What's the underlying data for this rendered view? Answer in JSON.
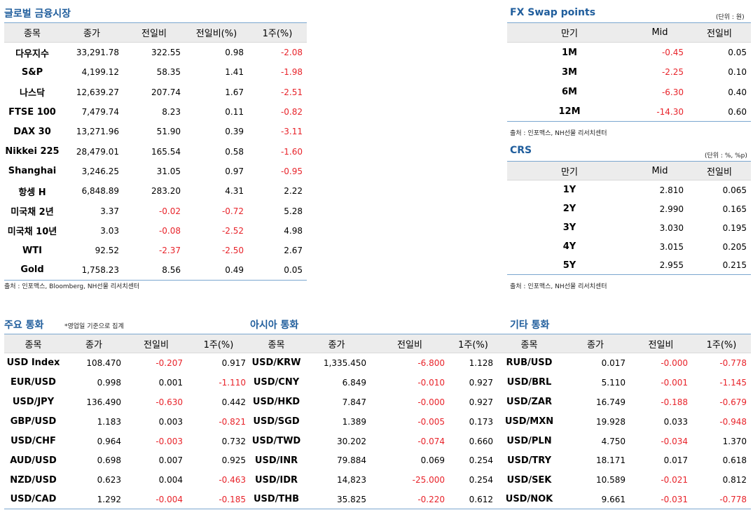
{
  "global": {
    "title": "글로벌 금융시장",
    "columns": [
      "종목",
      "종가",
      "전일비",
      "전일비(%)",
      "1주(%)"
    ],
    "rows": [
      {
        "name": "다우지수",
        "close": "33,291.78",
        "chg": "322.55",
        "chg_pct": "0.98",
        "week": "-2.08"
      },
      {
        "name": "S&P",
        "close": "4,199.12",
        "chg": "58.35",
        "chg_pct": "1.41",
        "week": "-1.98"
      },
      {
        "name": "나스닥",
        "close": "12,639.27",
        "chg": "207.74",
        "chg_pct": "1.67",
        "week": "-2.51"
      },
      {
        "name": "FTSE 100",
        "close": "7,479.74",
        "chg": "8.23",
        "chg_pct": "0.11",
        "week": "-0.82"
      },
      {
        "name": "DAX 30",
        "close": "13,271.96",
        "chg": "51.90",
        "chg_pct": "0.39",
        "week": "-3.11"
      },
      {
        "name": "Nikkei 225",
        "close": "28,479.01",
        "chg": "165.54",
        "chg_pct": "0.58",
        "week": "-1.60"
      },
      {
        "name": "Shanghai",
        "close": "3,246.25",
        "chg": "31.05",
        "chg_pct": "0.97",
        "week": "-0.95"
      },
      {
        "name": "항셍 H",
        "close": "6,848.89",
        "chg": "283.20",
        "chg_pct": "4.31",
        "week": "2.22"
      },
      {
        "name": "미국채 2년",
        "close": "3.37",
        "chg": "-0.02",
        "chg_pct": "-0.72",
        "week": "5.28"
      },
      {
        "name": "미국채 10년",
        "close": "3.03",
        "chg": "-0.08",
        "chg_pct": "-2.52",
        "week": "4.98"
      },
      {
        "name": "WTI",
        "close": "92.52",
        "chg": "-2.37",
        "chg_pct": "-2.50",
        "week": "2.67"
      },
      {
        "name": "Gold",
        "close": "1,758.23",
        "chg": "8.56",
        "chg_pct": "0.49",
        "week": "0.05"
      }
    ],
    "source": "출처 : 인포맥스, Bloomberg, NH선물 리서치센터"
  },
  "fx_swap": {
    "title": "FX Swap points",
    "unit": "(단위 : 원)",
    "columns": [
      "만기",
      "Mid",
      "전일비"
    ],
    "rows": [
      {
        "term": "1M",
        "mid": "-0.45",
        "chg": "0.05"
      },
      {
        "term": "3M",
        "mid": "-2.25",
        "chg": "0.10"
      },
      {
        "term": "6M",
        "mid": "-6.30",
        "chg": "0.40"
      },
      {
        "term": "12M",
        "mid": "-14.30",
        "chg": "0.60"
      }
    ],
    "source": "출처 : 인포맥스, NH선물 리서치센터"
  },
  "crs": {
    "title": "CRS",
    "unit": "(단위 : %, %p)",
    "columns": [
      "만기",
      "Mid",
      "전일비"
    ],
    "rows": [
      {
        "term": "1Y",
        "mid": "2.810",
        "chg": "0.065"
      },
      {
        "term": "2Y",
        "mid": "2.990",
        "chg": "0.165"
      },
      {
        "term": "3Y",
        "mid": "3.030",
        "chg": "0.195"
      },
      {
        "term": "4Y",
        "mid": "3.015",
        "chg": "0.205"
      },
      {
        "term": "5Y",
        "mid": "2.955",
        "chg": "0.215"
      }
    ],
    "source": "출처 : 인포맥스, NH선물 리서치센터"
  },
  "currencies": {
    "columns": [
      "종목",
      "종가",
      "전일비",
      "1주(%)"
    ],
    "major": {
      "title": "주요 통화",
      "note": "*영업일 기준으로 집계",
      "rows": [
        {
          "name": "USD Index",
          "close": "108.470",
          "chg": "-0.207",
          "week": "0.917"
        },
        {
          "name": "EUR/USD",
          "close": "0.998",
          "chg": "0.001",
          "week": "-1.110"
        },
        {
          "name": "USD/JPY",
          "close": "136.490",
          "chg": "-0.630",
          "week": "0.442"
        },
        {
          "name": "GBP/USD",
          "close": "1.183",
          "chg": "0.003",
          "week": "-0.821"
        },
        {
          "name": "USD/CHF",
          "close": "0.964",
          "chg": "-0.003",
          "week": "0.732"
        },
        {
          "name": "AUD/USD",
          "close": "0.698",
          "chg": "0.007",
          "week": "0.925"
        },
        {
          "name": "NZD/USD",
          "close": "0.623",
          "chg": "0.004",
          "week": "-0.463"
        },
        {
          "name": "USD/CAD",
          "close": "1.292",
          "chg": "-0.004",
          "week": "-0.185"
        }
      ]
    },
    "asia": {
      "title": "아시아 통화",
      "rows": [
        {
          "name": "USD/KRW",
          "close": "1,335.450",
          "chg": "-6.800",
          "week": "1.128"
        },
        {
          "name": "USD/CNY",
          "close": "6.849",
          "chg": "-0.010",
          "week": "0.927"
        },
        {
          "name": "USD/HKD",
          "close": "7.847",
          "chg": "-0.000",
          "week": "0.927"
        },
        {
          "name": "USD/SGD",
          "close": "1.389",
          "chg": "-0.005",
          "week": "0.173"
        },
        {
          "name": "USD/TWD",
          "close": "30.202",
          "chg": "-0.074",
          "week": "0.660"
        },
        {
          "name": "USD/INR",
          "close": "79.884",
          "chg": "0.069",
          "week": "0.254"
        },
        {
          "name": "USD/IDR",
          "close": "14,823",
          "chg": "-25.000",
          "week": "0.254"
        },
        {
          "name": "USD/THB",
          "close": "35.825",
          "chg": "-0.220",
          "week": "0.612"
        }
      ]
    },
    "other": {
      "title": "기타 통화",
      "rows": [
        {
          "name": "RUB/USD",
          "close": "0.017",
          "chg": "-0.000",
          "week": "-0.778"
        },
        {
          "name": "USD/BRL",
          "close": "5.110",
          "chg": "-0.001",
          "week": "-1.145"
        },
        {
          "name": "USD/ZAR",
          "close": "16.749",
          "chg": "-0.188",
          "week": "-0.679"
        },
        {
          "name": "USD/MXN",
          "close": "19.928",
          "chg": "0.033",
          "week": "-0.948"
        },
        {
          "name": "USD/PLN",
          "close": "4.750",
          "chg": "-0.034",
          "week": "1.370"
        },
        {
          "name": "USD/TRY",
          "close": "18.171",
          "chg": "0.017",
          "week": "0.618"
        },
        {
          "name": "USD/SEK",
          "close": "10.589",
          "chg": "-0.021",
          "week": "0.812"
        },
        {
          "name": "USD/NOK",
          "close": "9.661",
          "chg": "-0.031",
          "week": "-0.778"
        }
      ]
    }
  },
  "colors": {
    "title": "#1f5d9c",
    "negative": "#e8232a",
    "header_bg": "#ececec",
    "rule": "#7aa6cf"
  }
}
